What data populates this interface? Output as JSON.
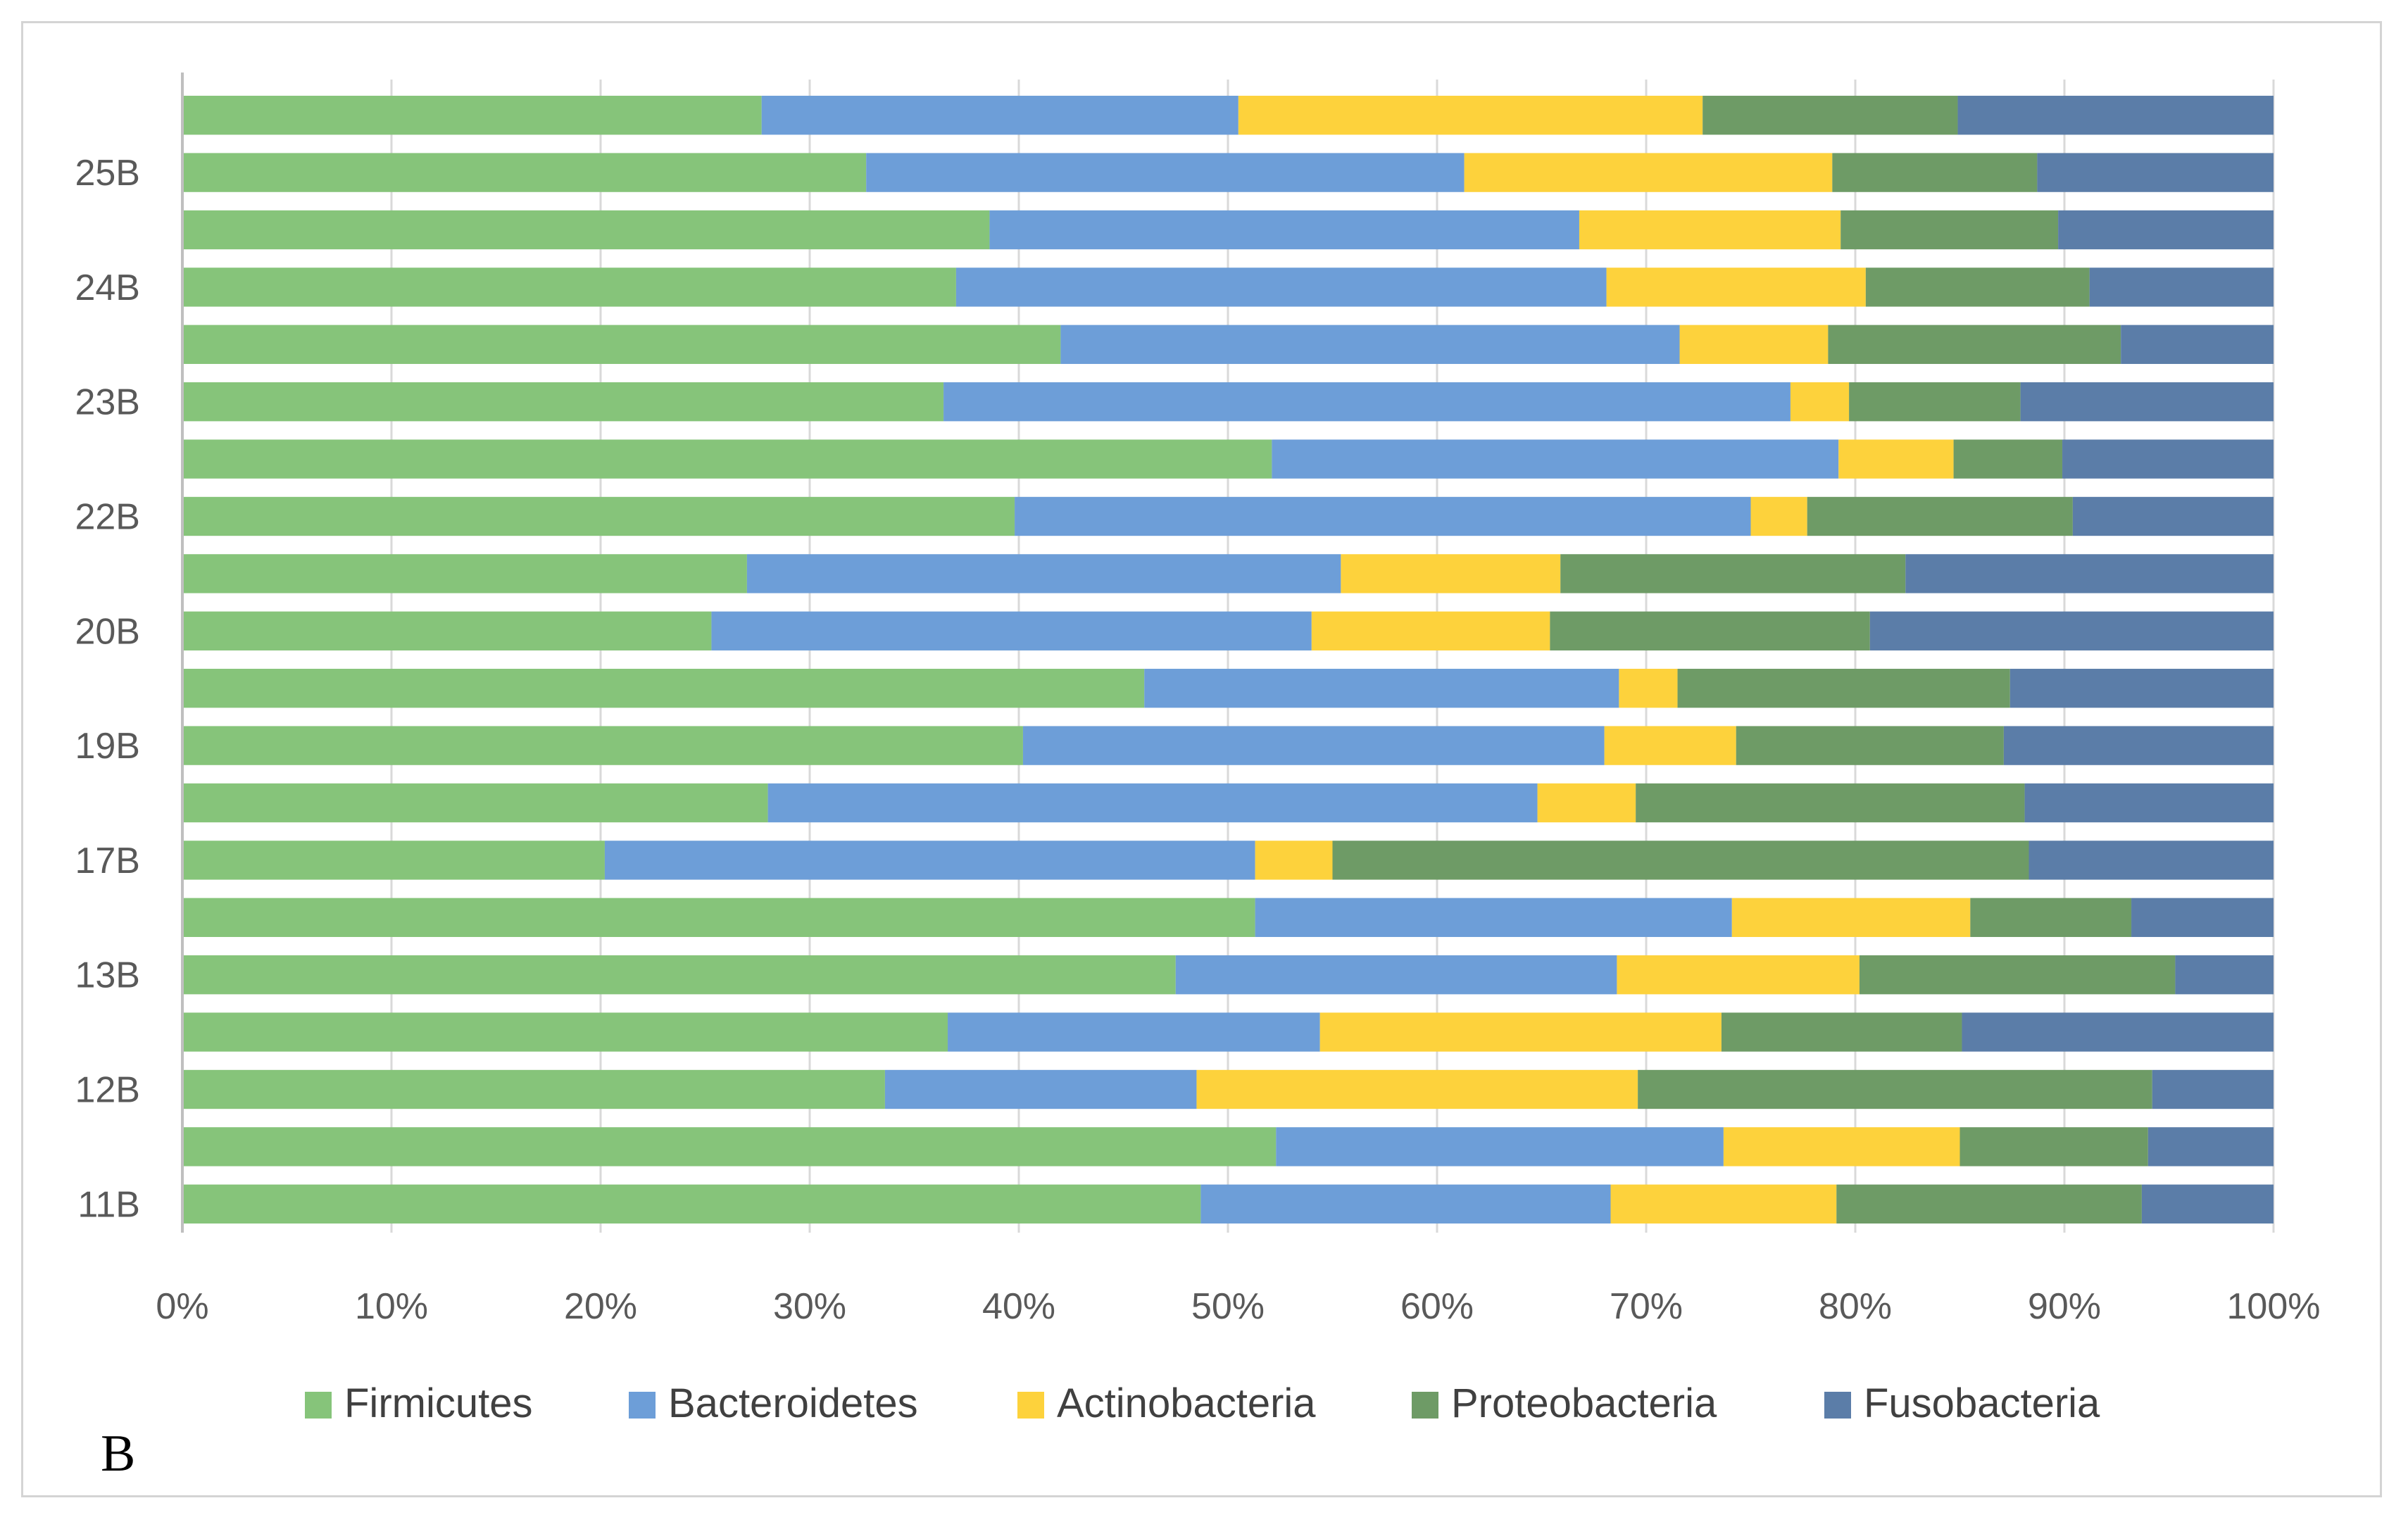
{
  "panel_label": "B",
  "chart_data": {
    "type": "bar",
    "orientation": "horizontal",
    "stacked": "percent",
    "title": "",
    "xlabel": "",
    "ylabel": "",
    "xlim": [
      0,
      100
    ],
    "x_ticks": [
      "0%",
      "10%",
      "20%",
      "30%",
      "40%",
      "50%",
      "60%",
      "70%",
      "80%",
      "90%",
      "100%"
    ],
    "grid": "vertical",
    "legend_position": "bottom",
    "category_labels": [
      "11B",
      "",
      "12B",
      "",
      "13B",
      "",
      "17B",
      "",
      "19B",
      "",
      "20B",
      "",
      "22B",
      "",
      "23B",
      "",
      "24B",
      "",
      "25B",
      ""
    ],
    "series": [
      {
        "name": "Firmicutes",
        "color": "#86c47a",
        "values": [
          48.7,
          52.3,
          33.6,
          36.6,
          47.5,
          51.3,
          20.2,
          28.0,
          40.2,
          46.0,
          25.3,
          27.0,
          39.8,
          52.1,
          36.4,
          42.0,
          37.0,
          38.6,
          32.7,
          27.7
        ]
      },
      {
        "name": "Bacteroidetes",
        "color": "#6d9ed8",
        "values": [
          19.6,
          21.4,
          14.9,
          17.8,
          21.1,
          22.8,
          31.1,
          36.8,
          27.8,
          22.7,
          28.7,
          28.4,
          35.2,
          27.1,
          40.5,
          29.6,
          31.1,
          28.2,
          28.6,
          22.8
        ]
      },
      {
        "name": "Actinobacteria",
        "color": "#fdd23c",
        "values": [
          10.8,
          11.3,
          21.1,
          19.2,
          11.6,
          11.4,
          3.7,
          4.7,
          6.3,
          2.8,
          11.4,
          10.5,
          2.7,
          5.5,
          2.8,
          7.1,
          12.4,
          12.5,
          17.6,
          22.2
        ]
      },
      {
        "name": "Proteobacteria",
        "color": "#6e9b66",
        "values": [
          14.6,
          9.0,
          24.6,
          11.5,
          15.1,
          7.7,
          33.3,
          18.6,
          12.8,
          15.9,
          15.3,
          16.5,
          12.7,
          5.2,
          8.2,
          14.0,
          10.7,
          10.4,
          9.8,
          12.2
        ]
      },
      {
        "name": "Fusobacteria",
        "color": "#5b7da8",
        "values": [
          6.3,
          6.0,
          5.8,
          14.9,
          4.7,
          6.8,
          11.7,
          11.9,
          12.9,
          12.6,
          19.3,
          17.6,
          9.6,
          10.1,
          12.1,
          7.3,
          8.8,
          10.3,
          11.3,
          15.1
        ]
      }
    ]
  }
}
